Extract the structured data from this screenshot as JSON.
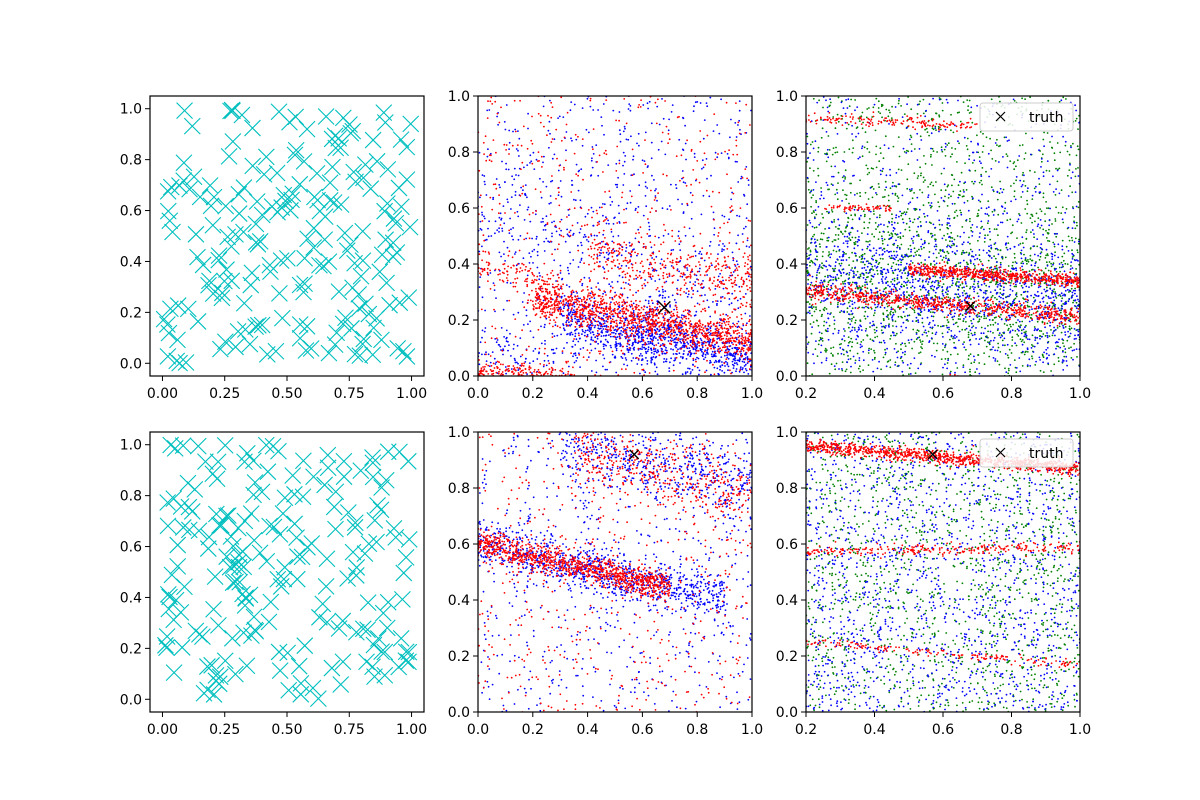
{
  "colors": {
    "cyan": "#00bfbf",
    "blue": "#0000ff",
    "red": "#ff0000",
    "green": "#008000",
    "truth": "#000000",
    "axis": "#000000",
    "background": "#ffffff"
  },
  "chart_data": [
    {
      "id": "p1",
      "type": "scatter",
      "marker": "x",
      "color": "cyan",
      "title": "",
      "xlabel": "",
      "ylabel": "",
      "xlim": [
        -0.05,
        1.05
      ],
      "ylim": [
        -0.05,
        1.05
      ],
      "xticks": [
        "0.00",
        "0.25",
        "0.50",
        "0.75",
        "1.00"
      ],
      "yticks": [
        "0.0",
        "0.2",
        "0.4",
        "0.6",
        "0.8",
        "1.0"
      ],
      "series": [
        {
          "name": "samples",
          "color": "cyan",
          "n": 200,
          "distribution": "uniform",
          "seed": 11
        }
      ]
    },
    {
      "id": "p2",
      "type": "scatter",
      "marker": "dot",
      "title": "",
      "xlabel": "",
      "ylabel": "",
      "xlim": [
        0,
        1
      ],
      "ylim": [
        0,
        1
      ],
      "xticks": [
        "0.0",
        "0.2",
        "0.4",
        "0.6",
        "0.8",
        "1.0"
      ],
      "yticks": [
        "0.0",
        "0.2",
        "0.4",
        "0.6",
        "0.8",
        "1.0"
      ],
      "series": [
        {
          "name": "blue",
          "color": "blue",
          "seed": 21,
          "uniform": 700,
          "bands": [
            {
              "x": [
                0.3,
                1.0
              ],
              "y0": 0.28,
              "slope": -0.22,
              "width": 0.05,
              "n": 900
            },
            {
              "x": [
                0.0,
                1.0
              ],
              "y0": 0.6,
              "slope": -0.35,
              "width": 0.1,
              "n": 250
            },
            {
              "x": [
                0.0,
                0.9
              ],
              "y0": 0.05,
              "slope": 0.1,
              "width": 0.06,
              "n": 200
            }
          ]
        },
        {
          "name": "red",
          "color": "red",
          "seed": 22,
          "uniform": 500,
          "bands": [
            {
              "x": [
                0.2,
                1.0
              ],
              "y0": 0.32,
              "slope": -0.2,
              "width": 0.035,
              "n": 1200
            },
            {
              "x": [
                0.4,
                1.0
              ],
              "y0": 0.52,
              "slope": -0.18,
              "width": 0.05,
              "n": 350
            },
            {
              "x": [
                0.0,
                0.35
              ],
              "y0": 0.02,
              "slope": -0.05,
              "width": 0.02,
              "n": 200
            },
            {
              "x": [
                0.0,
                0.3
              ],
              "y0": 0.4,
              "slope": -0.25,
              "width": 0.03,
              "n": 100
            }
          ]
        }
      ],
      "truth": {
        "x": 0.68,
        "y": 0.245,
        "size": "large"
      }
    },
    {
      "id": "p3",
      "type": "scatter",
      "marker": "dot",
      "title": "",
      "xlabel": "",
      "ylabel": "",
      "xlim": [
        0.2,
        1.0
      ],
      "ylim": [
        0,
        1
      ],
      "xticks": [
        "0.2",
        "0.4",
        "0.6",
        "0.8",
        "1.0"
      ],
      "yticks": [
        "0.0",
        "0.2",
        "0.4",
        "0.6",
        "0.8",
        "1.0"
      ],
      "series": [
        {
          "name": "green",
          "color": "green",
          "seed": 31,
          "uniform": 1200,
          "bands": [
            {
              "x": [
                0.2,
                1.0
              ],
              "y0": 0.38,
              "slope": -0.1,
              "width": 0.14,
              "n": 800
            }
          ]
        },
        {
          "name": "blue",
          "color": "blue",
          "seed": 32,
          "uniform": 600,
          "bands": [
            {
              "x": [
                0.2,
                1.0
              ],
              "y0": 0.4,
              "slope": -0.15,
              "width": 0.12,
              "n": 1100
            }
          ]
        },
        {
          "name": "red",
          "color": "red",
          "seed": 33,
          "uniform": 0,
          "bands": [
            {
              "x": [
                0.2,
                1.0
              ],
              "y0": 0.33,
              "slope": -0.12,
              "width": 0.015,
              "n": 700
            },
            {
              "x": [
                0.5,
                1.0
              ],
              "y0": 0.42,
              "slope": -0.08,
              "width": 0.012,
              "n": 600
            },
            {
              "x": [
                0.2,
                0.7
              ],
              "y0": 0.93,
              "slope": -0.05,
              "width": 0.01,
              "n": 150
            },
            {
              "x": [
                0.25,
                0.45
              ],
              "y0": 0.6,
              "slope": 0.0,
              "width": 0.006,
              "n": 60
            },
            {
              "x": [
                0.6,
                1.0
              ],
              "y0": 0.17,
              "slope": -0.28,
              "width": 0.01,
              "n": 120
            }
          ]
        }
      ],
      "truth": {
        "x": 0.68,
        "y": 0.25,
        "size": "small"
      },
      "legend": {
        "label": "truth",
        "position": "upper right"
      }
    },
    {
      "id": "p4",
      "type": "scatter",
      "marker": "x",
      "color": "cyan",
      "title": "",
      "xlabel": "",
      "ylabel": "",
      "xlim": [
        -0.05,
        1.05
      ],
      "ylim": [
        -0.05,
        1.05
      ],
      "xticks": [
        "0.00",
        "0.25",
        "0.50",
        "0.75",
        "1.00"
      ],
      "yticks": [
        "0.0",
        "0.2",
        "0.4",
        "0.6",
        "0.8",
        "1.0"
      ],
      "series": [
        {
          "name": "samples",
          "color": "cyan",
          "n": 200,
          "distribution": "uniform",
          "seed": 41
        }
      ]
    },
    {
      "id": "p5",
      "type": "scatter",
      "marker": "dot",
      "title": "",
      "xlabel": "",
      "ylabel": "",
      "xlim": [
        0,
        1
      ],
      "ylim": [
        0,
        1
      ],
      "xticks": [
        "0.0",
        "0.2",
        "0.4",
        "0.6",
        "0.8",
        "1.0"
      ],
      "yticks": [
        "0.0",
        "0.2",
        "0.4",
        "0.6",
        "0.8",
        "1.0"
      ],
      "series": [
        {
          "name": "blue",
          "color": "blue",
          "seed": 51,
          "uniform": 600,
          "bands": [
            {
              "x": [
                0.0,
                0.9
              ],
              "y0": 0.6,
              "slope": -0.22,
              "width": 0.04,
              "n": 900
            },
            {
              "x": [
                0.3,
                1.0
              ],
              "y0": 1.05,
              "slope": -0.25,
              "width": 0.07,
              "n": 500
            }
          ]
        },
        {
          "name": "red",
          "color": "red",
          "seed": 52,
          "uniform": 500,
          "bands": [
            {
              "x": [
                0.0,
                0.7
              ],
              "y0": 0.6,
              "slope": -0.22,
              "width": 0.025,
              "n": 1000
            },
            {
              "x": [
                0.35,
                1.0
              ],
              "y0": 1.02,
              "slope": -0.25,
              "width": 0.06,
              "n": 400
            }
          ]
        }
      ],
      "truth": {
        "x": 0.57,
        "y": 0.92,
        "size": "small"
      }
    },
    {
      "id": "p6",
      "type": "scatter",
      "marker": "dot",
      "title": "",
      "xlabel": "",
      "ylabel": "",
      "xlim": [
        0.2,
        1.0
      ],
      "ylim": [
        0,
        1
      ],
      "xticks": [
        "0.2",
        "0.4",
        "0.6",
        "0.8",
        "1.0"
      ],
      "yticks": [
        "0.0",
        "0.2",
        "0.4",
        "0.6",
        "0.8",
        "1.0"
      ],
      "series": [
        {
          "name": "green",
          "color": "green",
          "seed": 61,
          "uniform": 1400,
          "bands": []
        },
        {
          "name": "blue",
          "color": "blue",
          "seed": 62,
          "uniform": 1500,
          "bands": []
        },
        {
          "name": "red",
          "color": "red",
          "seed": 63,
          "uniform": 0,
          "bands": [
            {
              "x": [
                0.2,
                1.0
              ],
              "y0": 0.97,
              "slope": -0.1,
              "width": 0.012,
              "n": 900
            },
            {
              "x": [
                0.2,
                1.0
              ],
              "y0": 0.57,
              "slope": 0.02,
              "width": 0.01,
              "n": 250
            },
            {
              "x": [
                0.2,
                1.0
              ],
              "y0": 0.27,
              "slope": -0.1,
              "width": 0.008,
              "n": 160
            }
          ]
        }
      ],
      "truth": {
        "x": 0.57,
        "y": 0.92,
        "size": "small"
      },
      "legend": {
        "label": "truth",
        "position": "upper right"
      }
    }
  ]
}
